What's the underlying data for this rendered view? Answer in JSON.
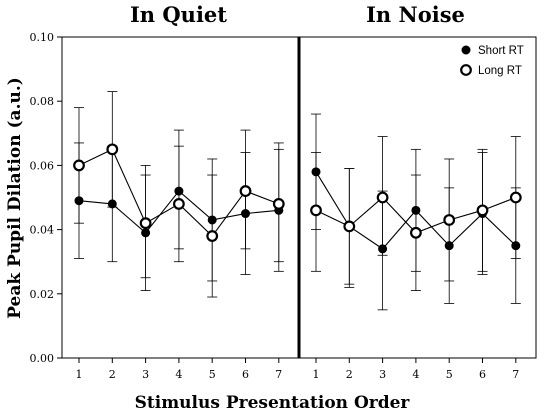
{
  "chart_data": {
    "type": "line",
    "xlabel": "Stimulus Presentation Order",
    "ylabel": "Peak Pupil Dilation (a.u.)",
    "ylim": [
      0,
      0.1
    ],
    "y_ticks": [
      "0.00",
      "0.02",
      "0.04",
      "0.06",
      "0.08",
      "0.10"
    ],
    "x_ticks": [
      "1",
      "2",
      "3",
      "4",
      "5",
      "6",
      "7"
    ],
    "legend": {
      "placement": "top-right",
      "entries": [
        "Short RT",
        "Long RT"
      ]
    },
    "panels": [
      {
        "title": "In Quiet",
        "x": [
          1,
          2,
          3,
          4,
          5,
          6,
          7
        ],
        "series": [
          {
            "name": "Short RT",
            "marker": "filled",
            "values": [
              0.049,
              0.048,
              0.039,
              0.052,
              0.043,
              0.045,
              0.046
            ],
            "err_low": [
              0.031,
              0.03,
              0.021,
              0.034,
              0.024,
              0.026,
              0.027
            ],
            "err_high": [
              0.067,
              0.066,
              0.057,
              0.071,
              0.062,
              0.064,
              0.065
            ]
          },
          {
            "name": "Long RT",
            "marker": "open",
            "values": [
              0.06,
              0.065,
              0.042,
              0.048,
              0.038,
              0.052,
              0.048
            ],
            "err_low": [
              0.042,
              0.047,
              0.025,
              0.03,
              0.019,
              0.034,
              0.03
            ],
            "err_high": [
              0.078,
              0.083,
              0.06,
              0.066,
              0.057,
              0.071,
              0.067
            ]
          }
        ]
      },
      {
        "title": "In Noise",
        "x": [
          1,
          2,
          3,
          4,
          5,
          6,
          7
        ],
        "series": [
          {
            "name": "Short RT",
            "marker": "filled",
            "values": [
              0.058,
              0.041,
              0.034,
              0.046,
              0.035,
              0.045,
              0.035
            ],
            "err_low": [
              0.04,
              0.023,
              0.015,
              0.027,
              0.017,
              0.026,
              0.017
            ],
            "err_high": [
              0.076,
              0.059,
              0.052,
              0.065,
              0.053,
              0.064,
              0.053
            ]
          },
          {
            "name": "Long RT",
            "marker": "open",
            "values": [
              0.046,
              0.041,
              0.05,
              0.039,
              0.043,
              0.046,
              0.05
            ],
            "err_low": [
              0.027,
              0.022,
              0.032,
              0.021,
              0.024,
              0.027,
              0.031
            ],
            "err_high": [
              0.064,
              0.059,
              0.069,
              0.057,
              0.062,
              0.065,
              0.069
            ]
          }
        ]
      }
    ]
  }
}
